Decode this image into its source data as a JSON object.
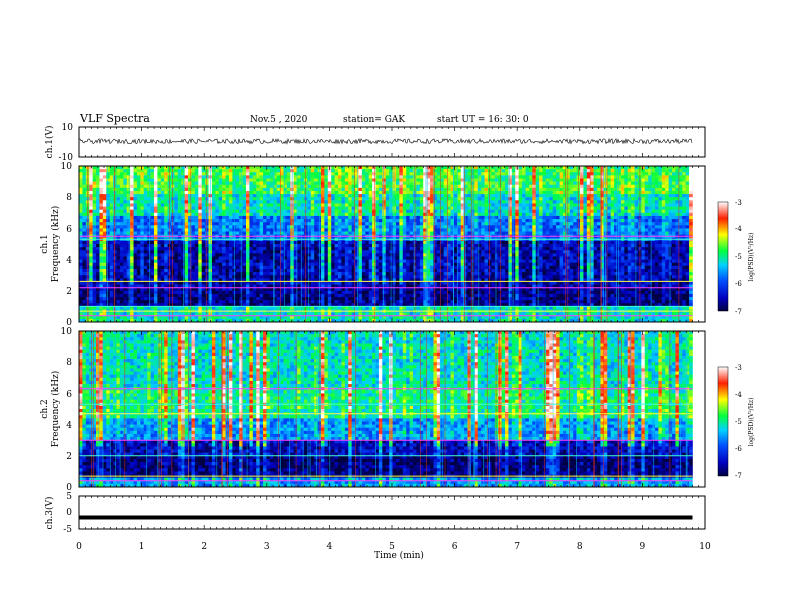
{
  "header": {
    "title": "VLF Spectra",
    "date": "Nov.5  , 2020",
    "station": "station= GAK",
    "start": "start  UT  =   16: 30: 0"
  },
  "chart_data": [
    {
      "type": "line",
      "panel": "ch1-waveform",
      "ylabel": "ch.1(V)",
      "ylim": [
        -10,
        10
      ],
      "yticks": [
        "10",
        "-10"
      ],
      "xlim": [
        0,
        10
      ],
      "mean_value": 0.5,
      "noise_amplitude": 1.6
    },
    {
      "type": "heatmap",
      "panel": "ch1-spectrogram",
      "ylabel_line1": "ch.1",
      "ylabel_line2": "Frequency  (kHz)",
      "ylim": [
        0,
        10
      ],
      "yticks": [
        "0",
        "2",
        "4",
        "6",
        "8",
        "10"
      ],
      "xlim": [
        0,
        10
      ],
      "data_end_min": 9.8,
      "bands_kHz": [
        {
          "from": 0,
          "to": 1.0,
          "level": 0.45
        },
        {
          "from": 1.0,
          "to": 2.2,
          "level": 0.05
        },
        {
          "from": 2.2,
          "to": 5.3,
          "level": 0.1
        },
        {
          "from": 5.3,
          "to": 6.8,
          "level": 0.3
        },
        {
          "from": 6.8,
          "to": 8.3,
          "level": 0.45
        },
        {
          "from": 8.3,
          "to": 10,
          "level": 0.55
        }
      ],
      "lines_kHz": [
        0.4,
        0.7,
        1.0,
        2.2,
        2.6,
        5.3,
        5.5
      ],
      "colorbar": {
        "label": "log(PSD)(V²/Hz)",
        "ticks": [
          "-3",
          "-4",
          "-5",
          "-6",
          "-7"
        ],
        "range": [
          -7,
          -3
        ]
      }
    },
    {
      "type": "heatmap",
      "panel": "ch2-spectrogram",
      "ylabel_line1": "ch.2",
      "ylabel_line2": "Frequency  (kHz)",
      "ylim": [
        0,
        10
      ],
      "yticks": [
        "0",
        "2",
        "4",
        "6",
        "8",
        "10"
      ],
      "xlim": [
        0,
        10
      ],
      "data_end_min": 9.8,
      "bands_kHz": [
        {
          "from": 0,
          "to": 0.6,
          "level": 0.35
        },
        {
          "from": 0.6,
          "to": 2.0,
          "level": 0.05
        },
        {
          "from": 2.0,
          "to": 3.0,
          "level": 0.12
        },
        {
          "from": 3.0,
          "to": 4.5,
          "level": 0.35
        },
        {
          "from": 4.5,
          "to": 6.5,
          "level": 0.5
        },
        {
          "from": 6.5,
          "to": 10,
          "level": 0.45
        }
      ],
      "lines_kHz": [
        0.4,
        0.7,
        2.0,
        3.0,
        4.7,
        5.3,
        6.3
      ],
      "colorbar": {
        "label": "log(PSD)(V²/Hz)",
        "ticks": [
          "-3",
          "-4",
          "-5",
          "-6",
          "-7"
        ],
        "range": [
          -7,
          -3
        ]
      }
    },
    {
      "type": "line",
      "panel": "ch3-waveform",
      "ylabel": "ch.3(V)",
      "ylim": [
        -5,
        5
      ],
      "yticks": [
        "5",
        "0",
        "-5"
      ],
      "xlim": [
        0,
        10
      ],
      "value": -1.5
    }
  ],
  "xaxis": {
    "label": "Time  (min)",
    "ticks": [
      "0",
      "1",
      "2",
      "3",
      "4",
      "5",
      "6",
      "7",
      "8",
      "9",
      "10"
    ]
  }
}
